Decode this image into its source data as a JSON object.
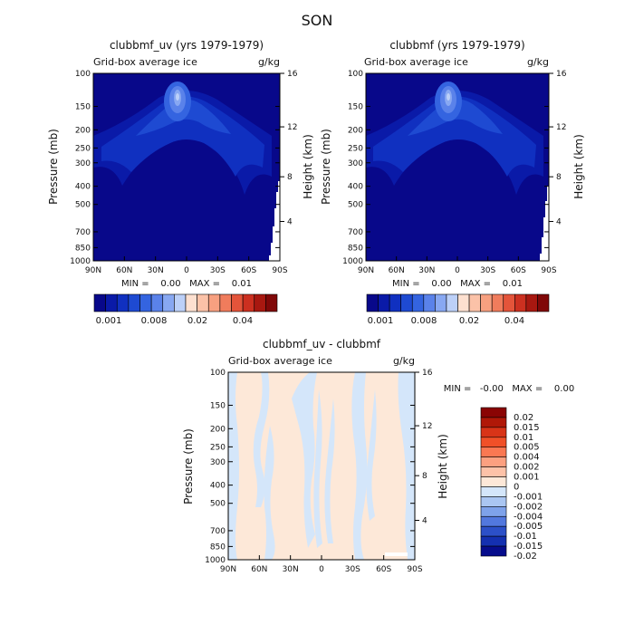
{
  "page_title": "SON",
  "chart_data": [
    {
      "type": "heatmap",
      "title": "clubbmf_uv (yrs 1979-1979)",
      "subtitle_left": "Grid-box average ice",
      "subtitle_right": "g/kg",
      "ylabel": "Pressure (mb)",
      "ylabel_right": "Height (km)",
      "x_ticks": [
        "90N",
        "60N",
        "30N",
        "0",
        "30S",
        "60S",
        "90S"
      ],
      "y_ticks": [
        100,
        150,
        200,
        250,
        300,
        400,
        500,
        700,
        850,
        1000
      ],
      "y_right_ticks": [
        16,
        12,
        8,
        4
      ],
      "ylim": [
        1000,
        100
      ],
      "stats": "MIN =    0.00   MAX =    0.01",
      "colorbar_labels": [
        "0.001",
        "0.008",
        "0.02",
        "0.04"
      ]
    },
    {
      "type": "heatmap",
      "title": "clubbmf (yrs 1979-1979)",
      "subtitle_left": "Grid-box average ice",
      "subtitle_right": "g/kg",
      "ylabel": "Pressure (mb)",
      "ylabel_right": "Height (km)",
      "x_ticks": [
        "90N",
        "60N",
        "30N",
        "0",
        "30S",
        "60S",
        "90S"
      ],
      "y_ticks": [
        100,
        150,
        200,
        250,
        300,
        400,
        500,
        700,
        850,
        1000
      ],
      "y_right_ticks": [
        16,
        12,
        8,
        4
      ],
      "ylim": [
        1000,
        100
      ],
      "stats": "MIN =    0.00   MAX =    0.01",
      "colorbar_labels": [
        "0.001",
        "0.008",
        "0.02",
        "0.04"
      ]
    },
    {
      "type": "heatmap",
      "title": "clubbmf_uv - clubbmf",
      "subtitle_left": "Grid-box average ice",
      "subtitle_right": "g/kg",
      "ylabel": "Pressure (mb)",
      "ylabel_right": "Height (km)",
      "x_ticks": [
        "90N",
        "60N",
        "30N",
        "0",
        "30S",
        "60S",
        "90S"
      ],
      "y_ticks": [
        100,
        150,
        200,
        250,
        300,
        400,
        500,
        700,
        850,
        1000
      ],
      "y_right_ticks": [
        16,
        12,
        8,
        4
      ],
      "ylim": [
        1000,
        100
      ],
      "stats": "MIN =   -0.00   MAX =    0.00",
      "colorbar_labels": [
        "0.02",
        "0.015",
        "0.01",
        "0.005",
        "0.004",
        "0.002",
        "0.001",
        "0",
        "-0.001",
        "-0.002",
        "-0.004",
        "-0.005",
        "-0.01",
        "-0.015",
        "-0.02"
      ]
    }
  ],
  "colors": {
    "abs_scale": [
      "#08088a",
      "#0a1aa8",
      "#1030c0",
      "#1e4ad2",
      "#3464e0",
      "#5a82ea",
      "#88a8f2",
      "#bcd0f8",
      "#fde0d0",
      "#fbc2a8",
      "#f7a080",
      "#f07c5c",
      "#e4543a",
      "#cc3020",
      "#a81810",
      "#800808"
    ],
    "diff_scale": [
      "#8a0404",
      "#b01808",
      "#d83418",
      "#f05028",
      "#fa7852",
      "#fca080",
      "#fdc2a8",
      "#fde8d8",
      "#d4e6fa",
      "#aac6f2",
      "#7ea2ea",
      "#5278de",
      "#2c50c8",
      "#1430b0",
      "#060c8c"
    ]
  }
}
